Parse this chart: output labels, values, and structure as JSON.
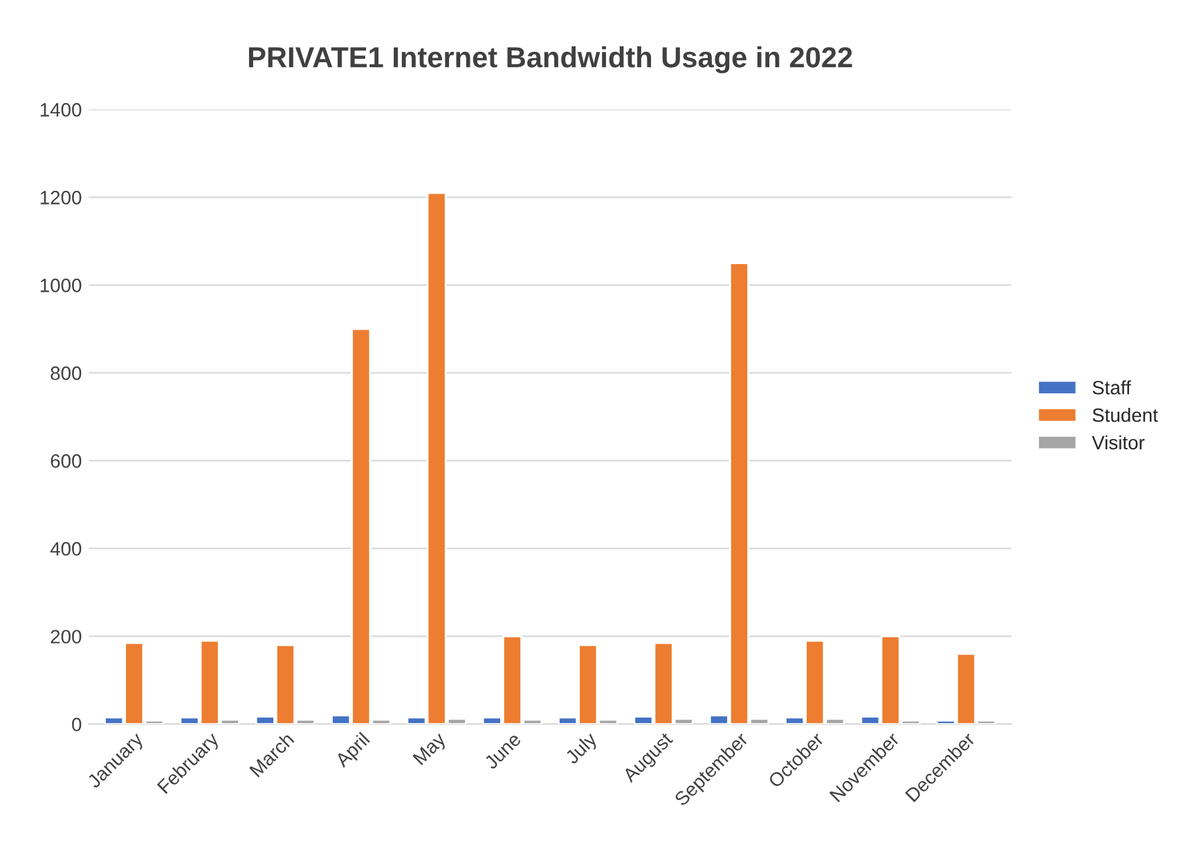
{
  "chart_data": {
    "type": "bar",
    "title": "PRIVATE1 Internet Bandwidth Usage in 2022",
    "categories": [
      "January",
      "February",
      "March",
      "April",
      "May",
      "June",
      "July",
      "August",
      "September",
      "October",
      "November",
      "December"
    ],
    "series": [
      {
        "name": "Staff",
        "color": "#4472c4",
        "values": [
          15,
          15,
          17,
          20,
          15,
          15,
          15,
          17,
          20,
          15,
          17,
          8
        ]
      },
      {
        "name": "Student",
        "color": "#ed7d31",
        "values": [
          185,
          190,
          180,
          900,
          1210,
          200,
          180,
          185,
          1050,
          190,
          200,
          160
        ]
      },
      {
        "name": "Visitor",
        "color": "#a5a5a5",
        "values": [
          8,
          10,
          10,
          10,
          12,
          10,
          10,
          12,
          12,
          12,
          8,
          8
        ]
      }
    ],
    "ylim": [
      0,
      1400
    ],
    "yticks": [
      0,
      200,
      400,
      600,
      800,
      1000,
      1200,
      1400
    ],
    "grid": "y",
    "legend": "right"
  }
}
